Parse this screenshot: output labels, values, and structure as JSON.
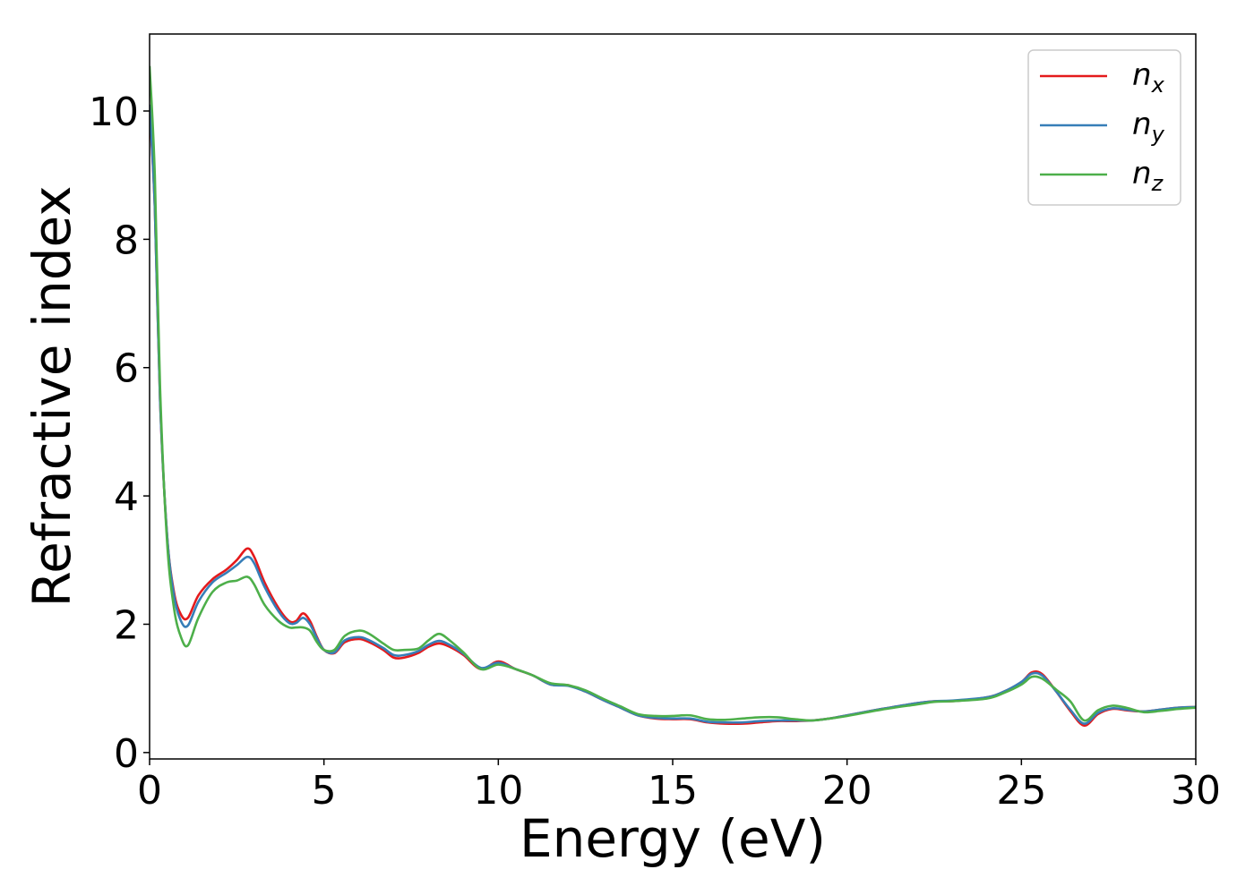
{
  "chart_data": {
    "type": "line",
    "title": "",
    "xlabel": "Energy (eV)",
    "ylabel": "Refractive index",
    "xlim": [
      0,
      30
    ],
    "ylim": [
      -0.1,
      11.2
    ],
    "xticks": [
      "0",
      "5",
      "10",
      "15",
      "20",
      "25",
      "30"
    ],
    "xtick_values": [
      0,
      5,
      10,
      15,
      20,
      25,
      30
    ],
    "yticks": [
      "0",
      "2",
      "4",
      "6",
      "8",
      "10"
    ],
    "ytick_values": [
      0,
      2,
      4,
      6,
      8,
      10
    ],
    "grid": false,
    "legend_position": "top-right",
    "series": [
      {
        "name": "n_x",
        "label_base": "n",
        "label_sub": "x",
        "color": "#e41a1c",
        "x": [
          0,
          0.15,
          0.3,
          0.5,
          0.7,
          0.9,
          1.1,
          1.4,
          1.8,
          2.2,
          2.5,
          2.8,
          3.0,
          3.3,
          3.7,
          4.0,
          4.2,
          4.4,
          4.6,
          4.8,
          5.0,
          5.3,
          5.6,
          6.0,
          6.3,
          6.7,
          7.0,
          7.3,
          7.7,
          8.0,
          8.3,
          8.6,
          9.0,
          9.5,
          10.0,
          10.5,
          11.0,
          11.5,
          12.0,
          12.5,
          13.0,
          13.5,
          14.0,
          14.5,
          15.0,
          15.5,
          16.0,
          16.5,
          17.0,
          17.5,
          18.0,
          18.5,
          19.0,
          19.5,
          20.0,
          21.0,
          22.0,
          22.5,
          23.0,
          24.0,
          24.5,
          25.0,
          25.3,
          25.6,
          26.0,
          26.4,
          26.8,
          27.2,
          27.6,
          28.0,
          28.5,
          29.0,
          29.5,
          30.0
        ],
        "y": [
          10.0,
          8.5,
          5.5,
          3.4,
          2.5,
          2.15,
          2.1,
          2.45,
          2.7,
          2.85,
          3.0,
          3.18,
          3.05,
          2.65,
          2.25,
          2.05,
          2.05,
          2.17,
          2.05,
          1.8,
          1.6,
          1.55,
          1.72,
          1.77,
          1.72,
          1.6,
          1.48,
          1.48,
          1.55,
          1.65,
          1.7,
          1.65,
          1.52,
          1.3,
          1.42,
          1.3,
          1.2,
          1.06,
          1.05,
          0.95,
          0.82,
          0.7,
          0.58,
          0.53,
          0.52,
          0.52,
          0.47,
          0.45,
          0.45,
          0.47,
          0.49,
          0.49,
          0.5,
          0.53,
          0.58,
          0.68,
          0.77,
          0.8,
          0.8,
          0.86,
          0.95,
          1.1,
          1.25,
          1.22,
          0.95,
          0.65,
          0.42,
          0.6,
          0.68,
          0.66,
          0.64,
          0.67,
          0.7,
          0.71
        ]
      },
      {
        "name": "n_y",
        "label_base": "n",
        "label_sub": "y",
        "color": "#377eb8",
        "x": [
          0,
          0.15,
          0.3,
          0.5,
          0.7,
          0.9,
          1.1,
          1.4,
          1.8,
          2.2,
          2.5,
          2.8,
          3.0,
          3.3,
          3.7,
          4.0,
          4.2,
          4.4,
          4.6,
          4.8,
          5.0,
          5.3,
          5.6,
          6.0,
          6.3,
          6.7,
          7.0,
          7.3,
          7.7,
          8.0,
          8.3,
          8.6,
          9.0,
          9.5,
          10.0,
          10.5,
          11.0,
          11.5,
          12.0,
          12.5,
          13.0,
          13.5,
          14.0,
          14.5,
          15.0,
          15.5,
          16.0,
          16.5,
          17.0,
          17.5,
          18.0,
          18.5,
          19.0,
          19.5,
          20.0,
          21.0,
          22.0,
          22.5,
          23.0,
          24.0,
          24.5,
          25.0,
          25.3,
          25.6,
          26.0,
          26.4,
          26.8,
          27.2,
          27.6,
          28.0,
          28.5,
          29.0,
          29.5,
          30.0
        ],
        "y": [
          10.1,
          8.5,
          5.5,
          3.4,
          2.45,
          2.05,
          1.98,
          2.35,
          2.65,
          2.8,
          2.92,
          3.05,
          2.95,
          2.58,
          2.2,
          2.02,
          2.02,
          2.1,
          2.0,
          1.78,
          1.6,
          1.56,
          1.75,
          1.8,
          1.75,
          1.63,
          1.52,
          1.52,
          1.58,
          1.68,
          1.74,
          1.68,
          1.54,
          1.32,
          1.4,
          1.3,
          1.2,
          1.06,
          1.04,
          0.95,
          0.82,
          0.7,
          0.58,
          0.54,
          0.53,
          0.53,
          0.48,
          0.47,
          0.47,
          0.49,
          0.5,
          0.5,
          0.5,
          0.53,
          0.58,
          0.68,
          0.77,
          0.8,
          0.81,
          0.86,
          0.95,
          1.1,
          1.23,
          1.2,
          0.95,
          0.67,
          0.45,
          0.62,
          0.69,
          0.67,
          0.64,
          0.67,
          0.7,
          0.71
        ]
      },
      {
        "name": "n_z",
        "label_base": "n",
        "label_sub": "z",
        "color": "#4daf4a",
        "x": [
          0,
          0.15,
          0.3,
          0.5,
          0.7,
          0.9,
          1.1,
          1.4,
          1.8,
          2.2,
          2.5,
          2.8,
          3.0,
          3.3,
          3.7,
          4.0,
          4.2,
          4.4,
          4.6,
          4.8,
          5.0,
          5.3,
          5.6,
          6.0,
          6.3,
          6.7,
          7.0,
          7.3,
          7.7,
          8.0,
          8.3,
          8.6,
          9.0,
          9.5,
          10.0,
          10.5,
          11.0,
          11.5,
          12.0,
          12.5,
          13.0,
          13.5,
          14.0,
          14.5,
          15.0,
          15.5,
          16.0,
          16.5,
          17.0,
          17.5,
          18.0,
          18.5,
          19.0,
          19.5,
          20.0,
          21.0,
          22.0,
          22.5,
          23.0,
          24.0,
          24.5,
          25.0,
          25.3,
          25.6,
          26.0,
          26.4,
          26.8,
          27.2,
          27.6,
          28.0,
          28.5,
          29.0,
          29.5,
          30.0
        ],
        "y": [
          10.7,
          9.0,
          5.7,
          3.3,
          2.25,
          1.8,
          1.67,
          2.1,
          2.5,
          2.65,
          2.68,
          2.74,
          2.62,
          2.3,
          2.05,
          1.95,
          1.95,
          1.95,
          1.9,
          1.72,
          1.6,
          1.6,
          1.82,
          1.9,
          1.85,
          1.7,
          1.6,
          1.6,
          1.62,
          1.75,
          1.85,
          1.75,
          1.56,
          1.3,
          1.37,
          1.3,
          1.2,
          1.08,
          1.05,
          0.97,
          0.84,
          0.72,
          0.6,
          0.57,
          0.57,
          0.58,
          0.52,
          0.51,
          0.53,
          0.55,
          0.55,
          0.52,
          0.5,
          0.53,
          0.57,
          0.67,
          0.75,
          0.79,
          0.8,
          0.84,
          0.93,
          1.06,
          1.18,
          1.15,
          0.98,
          0.8,
          0.5,
          0.66,
          0.73,
          0.7,
          0.63,
          0.65,
          0.68,
          0.7
        ]
      }
    ]
  }
}
